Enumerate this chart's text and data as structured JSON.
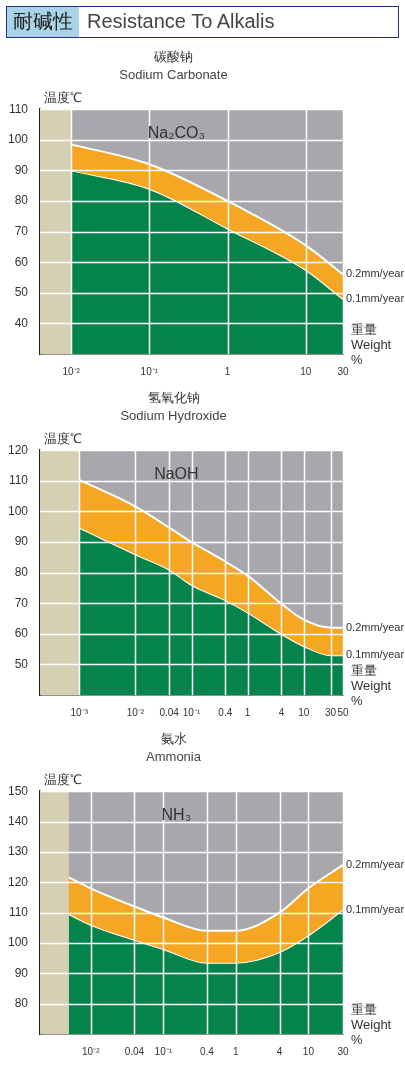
{
  "chart_data": [
    {
      "type": "other",
      "title": "耐碱性",
      "subtitle": "Resistance To Alkalis"
    },
    {
      "type": "area",
      "title": "碳酸钠",
      "subtitle": "Sodium Carbonate",
      "xlabel": "重量 Weight %",
      "ylabel": "温度℃",
      "log": "x",
      "grid": true,
      "x": [
        0.01,
        0.1,
        1,
        10,
        30
      ],
      "xlim": [
        0.004,
        30
      ],
      "xticks": [
        {
          "value": 0.01,
          "label": "10⁻²"
        },
        {
          "value": 0.1,
          "label": "10⁻¹"
        },
        1,
        10,
        30
      ],
      "ylim": [
        30,
        110
      ],
      "yticks": [
        40,
        50,
        60,
        70,
        80,
        90,
        100,
        110
      ],
      "bands": [
        {
          "axis": "x",
          "from": 0.004,
          "to": 0.01,
          "color": "#d5d0b1"
        }
      ],
      "series": [
        {
          "name": "0.2mm/year",
          "color": "#f5a623",
          "values": [
            98.5,
            92,
            80,
            65.5,
            56
          ]
        },
        {
          "name": "0.1mm/year",
          "color": "#04844b",
          "values": [
            90,
            84,
            71,
            57.5,
            48
          ]
        }
      ],
      "annotations": [
        "Na₂CO₃"
      ]
    },
    {
      "type": "area",
      "title": "氢氧化钠",
      "subtitle": "Sodium Hydroxide",
      "xlabel": "重量 Weight %",
      "ylabel": "温度℃",
      "log": "x",
      "grid": true,
      "x": [
        0.001,
        0.01,
        0.04,
        0.1,
        0.4,
        1,
        4,
        10,
        30,
        50
      ],
      "xlim": [
        0.0002,
        50
      ],
      "xticks": [
        {
          "value": 0.001,
          "label": "10⁻³"
        },
        {
          "value": 0.01,
          "label": "10⁻²"
        },
        0.04,
        {
          "value": 0.1,
          "label": "10⁻¹"
        },
        0.4,
        1,
        4,
        10,
        30,
        50
      ],
      "ylim": [
        40,
        120
      ],
      "yticks": [
        50,
        60,
        70,
        80,
        90,
        100,
        110,
        120
      ],
      "bands": [
        {
          "axis": "x",
          "from": 0.0002,
          "to": 0.001,
          "color": "#d5d0b1"
        }
      ],
      "series": [
        {
          "name": "0.2mm/year",
          "color": "#f5a623",
          "values": [
            110.3,
            101.6,
            94.7,
            90,
            83.6,
            79,
            69.8,
            64.6,
            62,
            62
          ]
        },
        {
          "name": "0.1mm/year",
          "color": "#04844b",
          "values": [
            94.7,
            86,
            81,
            76,
            71,
            67,
            60,
            56,
            53,
            53
          ]
        }
      ],
      "annotations": [
        "NaOH"
      ]
    },
    {
      "type": "area",
      "title": "氨水",
      "subtitle": "Ammonia",
      "xlabel": "重量 Weight %",
      "ylabel": "温度℃",
      "log": "x",
      "grid": true,
      "x": [
        0.005,
        0.01,
        0.04,
        0.1,
        0.4,
        1,
        4,
        10,
        30
      ],
      "xlim": [
        0.002,
        30
      ],
      "xticks": [
        {
          "value": 0.01,
          "label": "10⁻²"
        },
        0.04,
        {
          "value": 0.1,
          "label": "10⁻¹"
        },
        0.4,
        1,
        4,
        10,
        30
      ],
      "ylim": [
        70,
        150
      ],
      "yticks": [
        80,
        90,
        100,
        110,
        120,
        130,
        140,
        150
      ],
      "bands": [
        {
          "axis": "x",
          "from": 0.002,
          "to": 0.005,
          "color": "#d5d0b1"
        }
      ],
      "series": [
        {
          "name": "0.2mm/year",
          "color": "#f5a623",
          "values": [
            121.6,
            118,
            112,
            108.4,
            104,
            104,
            110,
            118,
            125.7
          ]
        },
        {
          "name": "0.1mm/year",
          "color": "#04844b",
          "values": [
            109.5,
            106,
            101,
            98,
            93.5,
            93.5,
            97,
            102.5,
            111
          ]
        }
      ],
      "annotations": [
        "NH₃"
      ]
    }
  ]
}
